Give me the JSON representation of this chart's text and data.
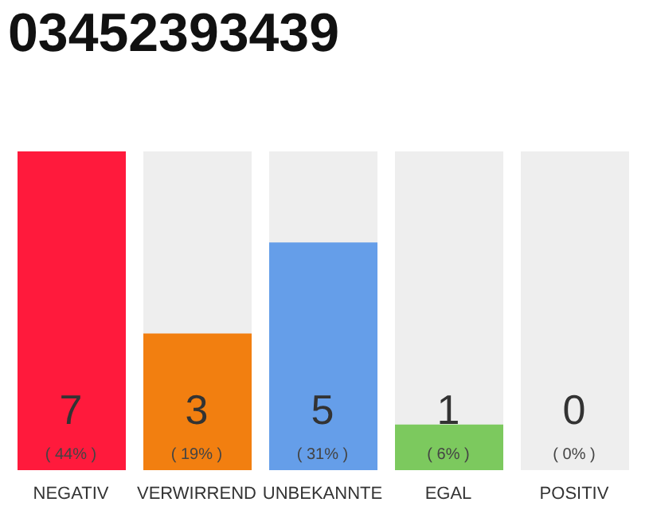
{
  "chart_data": {
    "type": "bar",
    "title": "03452393439",
    "categories": [
      "NEGATIV",
      "VERWIRREND",
      "UNBEKANNTE",
      "EGAL",
      "POSITIV"
    ],
    "values": [
      7,
      3,
      5,
      1,
      0
    ],
    "colors": [
      "#ff1a3c",
      "#f27f10",
      "#659ee9",
      "#7cc95e",
      "#cccccc"
    ],
    "data_labels": true,
    "annotations": [
      "( 44% )",
      "( 19% )",
      "( 31% )",
      "( 6% )",
      "( 0% )"
    ]
  }
}
